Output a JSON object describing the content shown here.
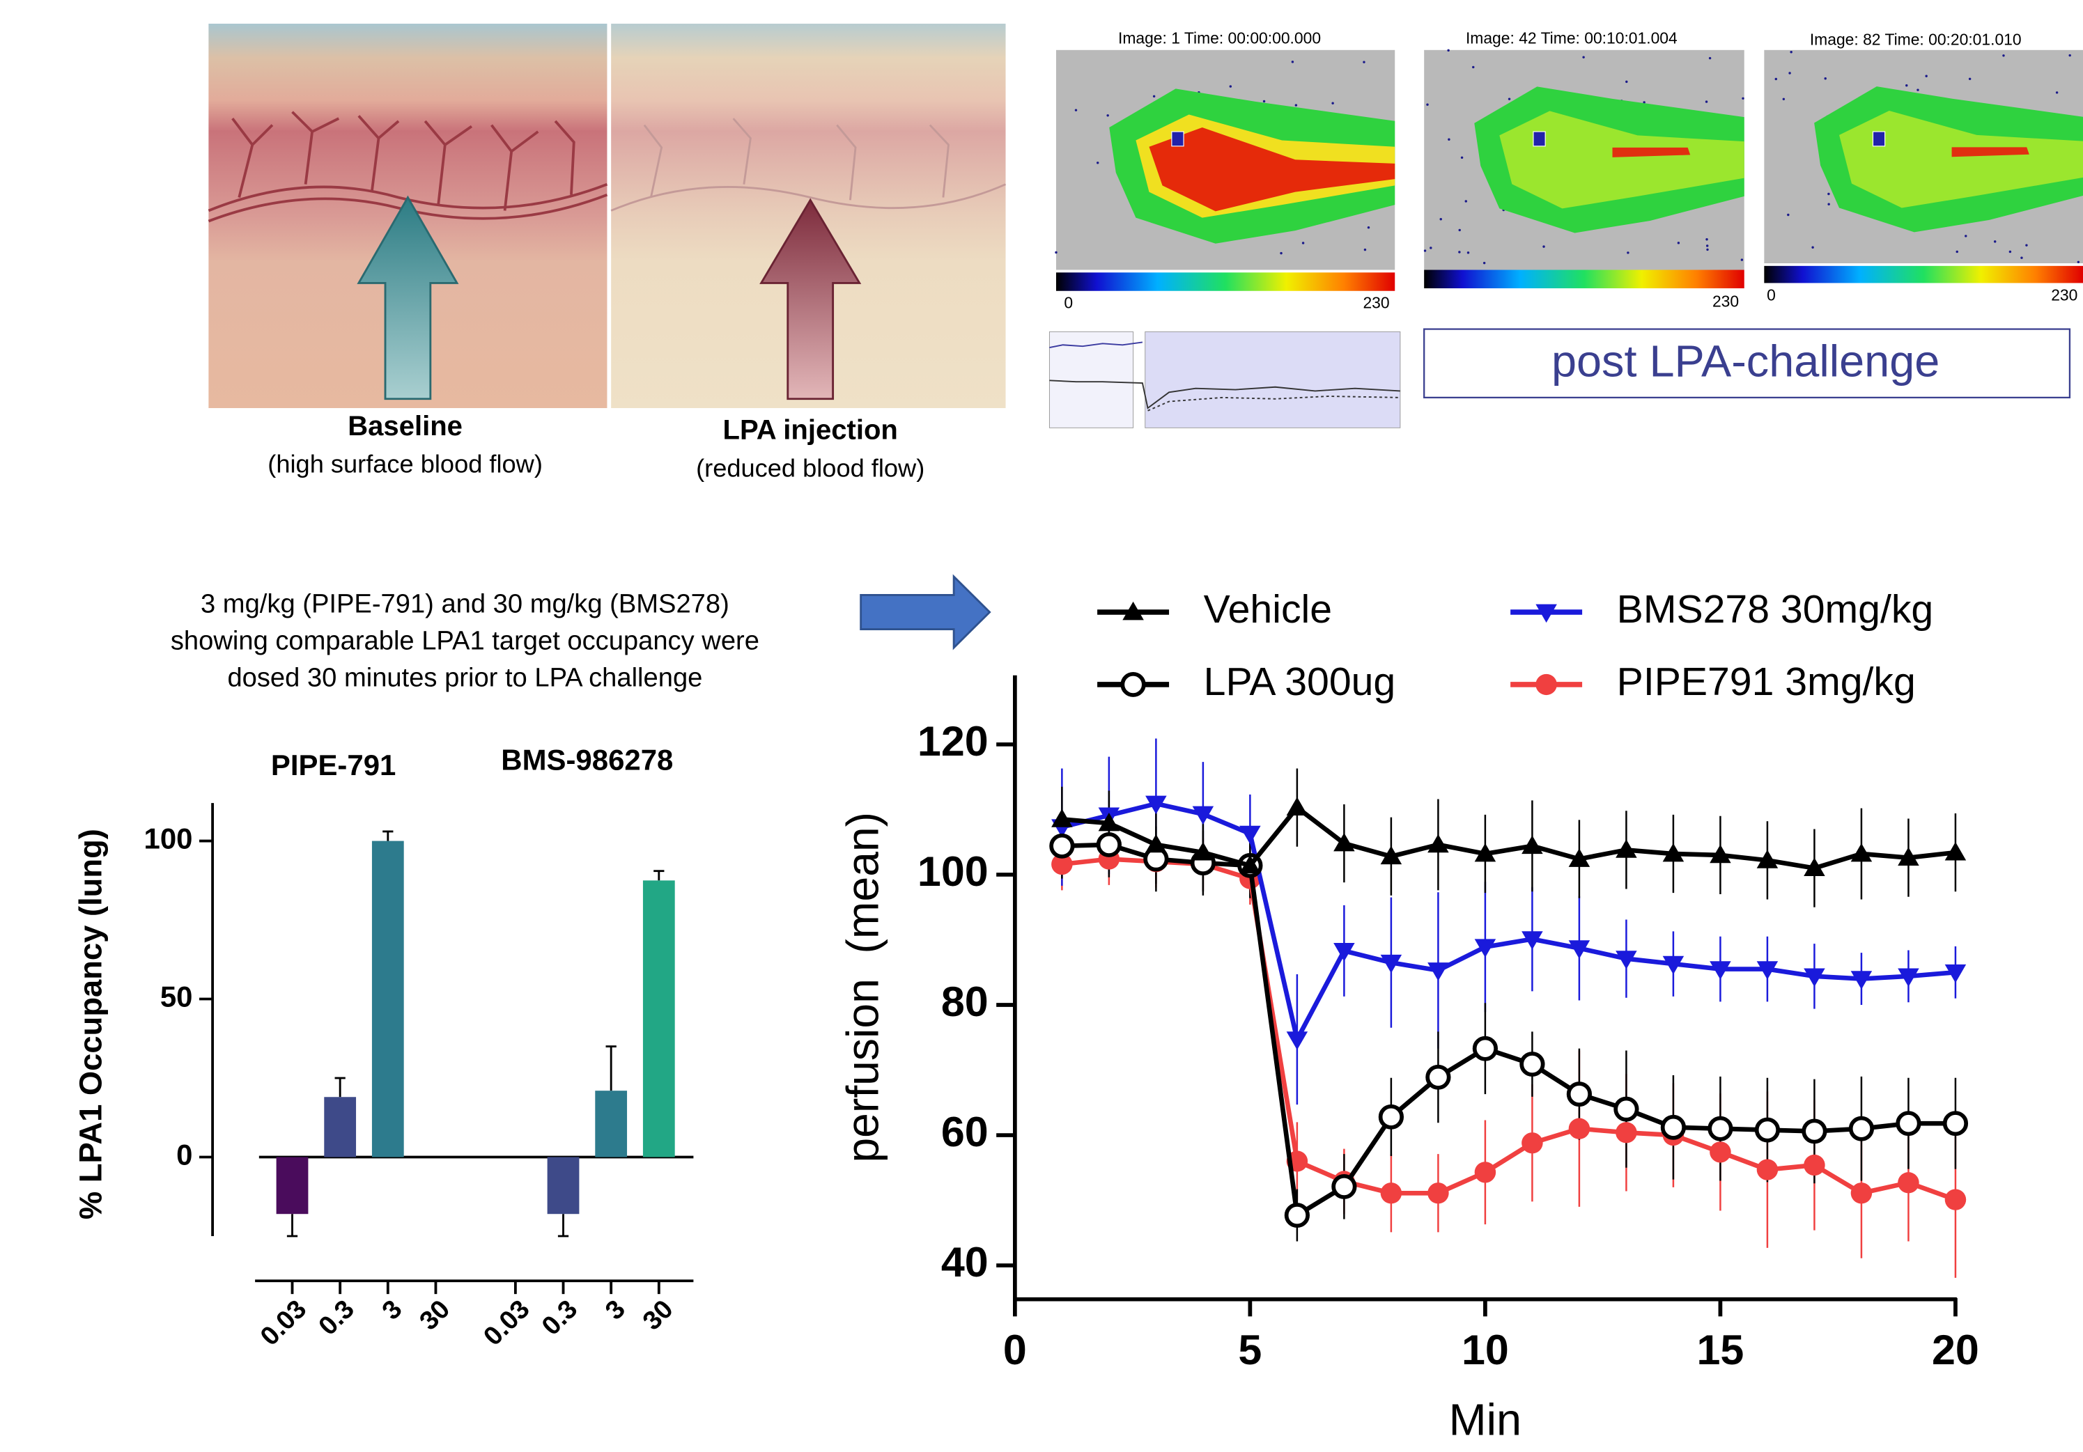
{
  "illustration": {
    "panels": [
      {
        "title": "Baseline",
        "subtitle": "(high surface blood flow)"
      },
      {
        "title": "LPA injection",
        "subtitle": "(reduced blood flow)"
      }
    ]
  },
  "imaging": {
    "frames": [
      {
        "label": "Image: 1   Time: 00:00:00.000",
        "scale_min": 0,
        "scale_max": 230
      },
      {
        "label": "Image: 42   Time: 00:10:01.004",
        "scale_max": 230
      },
      {
        "label": "Image: 82   Time: 00:20:01.010",
        "scale_min": 0,
        "scale_max": 230
      }
    ],
    "caption": "post LPA-challenge"
  },
  "note": [
    "3 mg/kg (PIPE-791) and 30 mg/kg (BMS278)",
    "showing comparable LPA1 target occupancy were",
    "dosed 30 minutes prior to LPA challenge"
  ],
  "chart_data": [
    {
      "type": "bar",
      "groups": [
        "PIPE-791",
        "BMS-986278"
      ],
      "categories": [
        "0.03",
        "0.3",
        "3",
        "30",
        "0.03",
        "0.3",
        "3",
        "30"
      ],
      "values": [
        -18,
        19,
        100,
        null,
        null,
        -18,
        21,
        87.5
      ],
      "errors": [
        7,
        6,
        3,
        null,
        null,
        7,
        14,
        3
      ],
      "colors": [
        "#4a0c5c",
        "#3e4a89",
        "#2d7b8d",
        "#22a785"
      ],
      "ylabel": "% LPA1 Occupancy (lung)",
      "ylim": [
        -25,
        112
      ],
      "yticks": [
        0,
        50,
        100
      ]
    },
    {
      "type": "line",
      "xlabel": "Min",
      "ylabel": "perfusion  (mean)",
      "x": [
        1,
        2,
        3,
        4,
        5,
        6,
        7,
        8,
        9,
        10,
        11,
        12,
        13,
        14,
        15,
        16,
        17,
        18,
        19,
        20
      ],
      "xlim": [
        0,
        20
      ],
      "xticks": [
        0,
        5,
        10,
        15,
        20
      ],
      "ylim": [
        35,
        130
      ],
      "yticks": [
        40,
        60,
        80,
        100,
        120
      ],
      "series": [
        {
          "name": "Vehicle",
          "color": "#000000",
          "marker": "triangle-up",
          "values": [
            108.5,
            107.9,
            104.6,
            103.4,
            101.4,
            110.3,
            104.8,
            102.8,
            104.6,
            103.2,
            104.4,
            102.4,
            103.8,
            103.2,
            103,
            102.2,
            101,
            103.2,
            102.6,
            103.4
          ],
          "errors": [
            5,
            5,
            6,
            6,
            5,
            6,
            6,
            6,
            7,
            6,
            7,
            6,
            6,
            6,
            6,
            6,
            6,
            7,
            6,
            6
          ]
        },
        {
          "name": "LPA 300ug",
          "color": "#000000",
          "marker": "circle-open",
          "values": [
            104.4,
            104.6,
            102.4,
            101.8,
            101.4,
            47.7,
            52.1,
            62.8,
            68.9,
            73.3,
            70.9,
            66.3,
            64,
            61.2,
            61,
            60.8,
            60.6,
            61,
            61.8,
            61.8
          ],
          "errors": [
            5,
            5,
            5,
            5,
            4,
            4,
            5,
            6,
            7,
            7,
            5,
            7,
            9,
            8,
            8,
            8,
            8,
            8,
            7,
            7
          ]
        },
        {
          "name": "BMS278 30mg/kg",
          "color": "#1a1adb",
          "marker": "triangle-down",
          "values": [
            107.3,
            109.1,
            110.9,
            109.3,
            106.3,
            74.7,
            88.3,
            86.5,
            85.3,
            88.9,
            90.1,
            88.7,
            87.1,
            86.3,
            85.5,
            85.5,
            84.4,
            84,
            84.4,
            85
          ],
          "errors": [
            9,
            9,
            10,
            8,
            6,
            10,
            7,
            10,
            12,
            10,
            8,
            8,
            6,
            5,
            5,
            5,
            5,
            4,
            4,
            4
          ]
        },
        {
          "name": "PIPE791 3mg/kg",
          "color": "#f04040",
          "marker": "circle",
          "values": [
            101.6,
            102.4,
            102,
            101.6,
            99.4,
            56,
            52.9,
            51.1,
            51.1,
            54.3,
            58.8,
            61,
            60.4,
            60,
            57.4,
            54.7,
            55.4,
            51.1,
            52.7,
            50.1
          ],
          "errors": [
            4,
            4,
            4,
            4,
            4,
            6,
            5,
            6,
            6,
            8,
            9,
            12,
            9,
            8,
            9,
            12,
            10,
            10,
            9,
            12
          ]
        }
      ]
    }
  ]
}
